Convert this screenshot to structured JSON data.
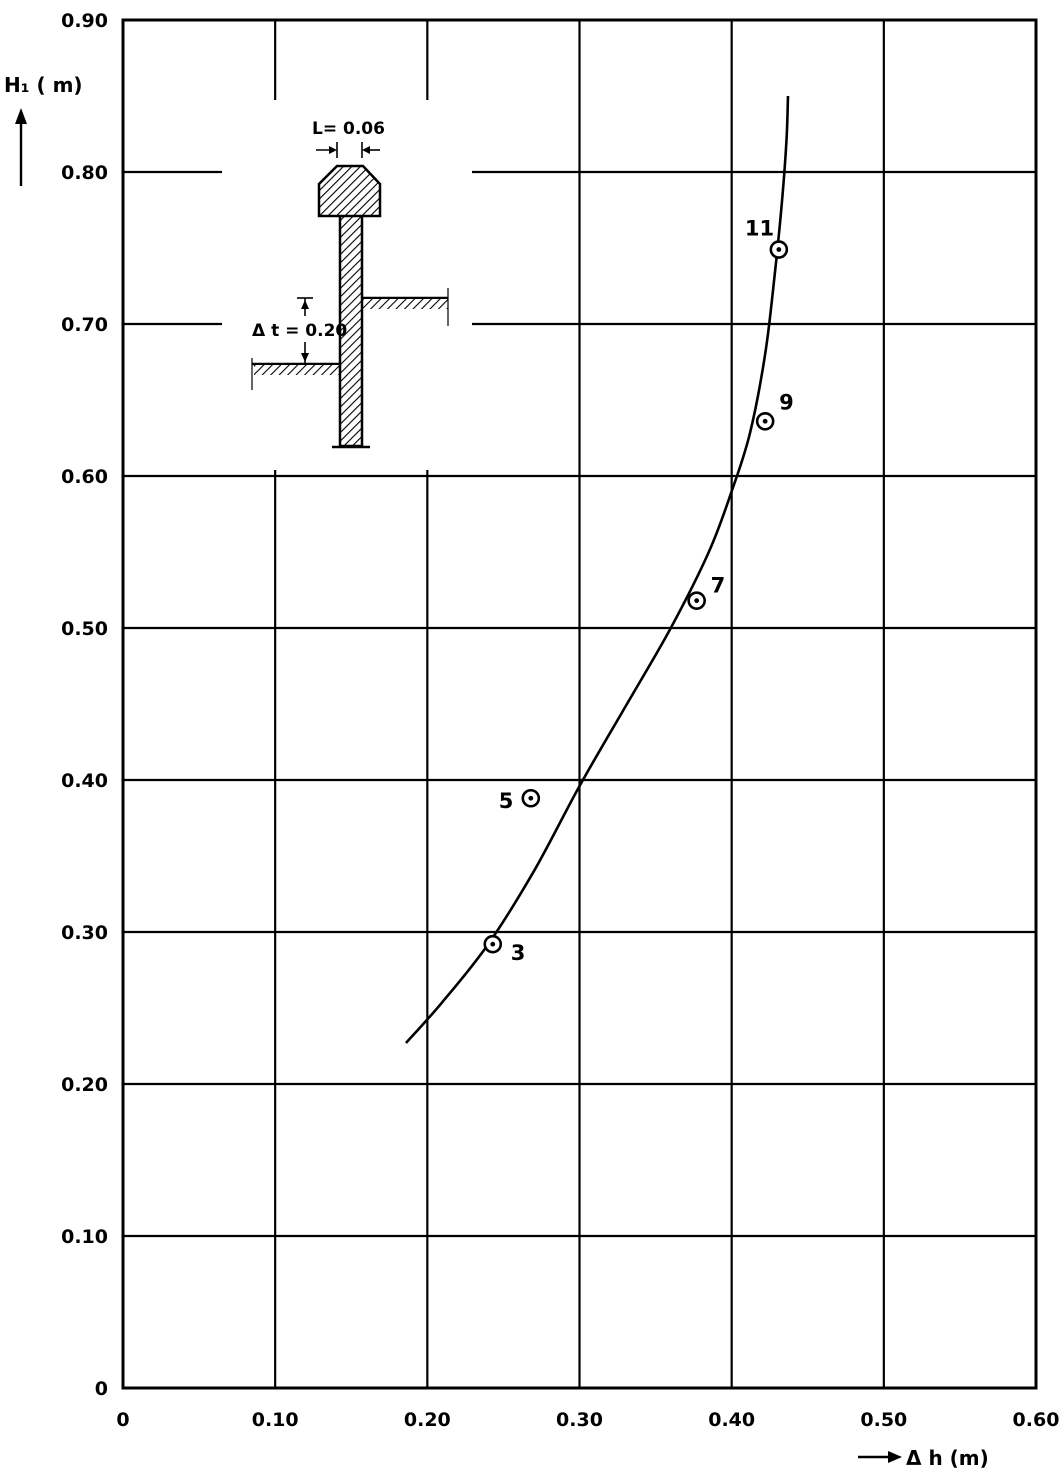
{
  "chart_data": {
    "type": "scatter",
    "xlabel": "Δ h (m)",
    "ylabel": "H₁ ( m)",
    "xlim": [
      0,
      0.6
    ],
    "ylim": [
      0,
      0.9
    ],
    "x_ticks": [
      "0",
      "0.10",
      "0.20",
      "0.30",
      "0.40",
      "0.50",
      "0.60"
    ],
    "y_ticks": [
      "0",
      "0.10",
      "0.20",
      "0.30",
      "0.40",
      "0.50",
      "0.60",
      "0.70",
      "0.80",
      "0.90"
    ],
    "grid": true,
    "points": [
      {
        "label": "3",
        "x": 0.243,
        "y": 0.292
      },
      {
        "label": "5",
        "x": 0.268,
        "y": 0.388
      },
      {
        "label": "7",
        "x": 0.377,
        "y": 0.518
      },
      {
        "label": "9",
        "x": 0.422,
        "y": 0.636
      },
      {
        "label": "11",
        "x": 0.431,
        "y": 0.749
      }
    ],
    "curve": [
      [
        0.186,
        0.227
      ],
      [
        0.21,
        0.254
      ],
      [
        0.24,
        0.292
      ],
      [
        0.27,
        0.34
      ],
      [
        0.3,
        0.396
      ],
      [
        0.33,
        0.448
      ],
      [
        0.36,
        0.5
      ],
      [
        0.385,
        0.55
      ],
      [
        0.4,
        0.59
      ],
      [
        0.412,
        0.628
      ],
      [
        0.422,
        0.68
      ],
      [
        0.428,
        0.73
      ],
      [
        0.433,
        0.78
      ],
      [
        0.436,
        0.82
      ],
      [
        0.437,
        0.85
      ]
    ],
    "inset": {
      "width_label": "L= 0.06",
      "step_label": "Δ t = 0.20"
    }
  }
}
